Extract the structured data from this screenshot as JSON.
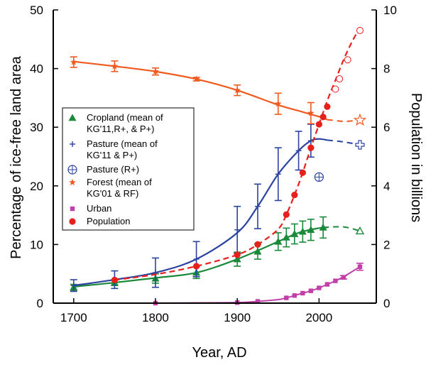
{
  "chart_data": {
    "type": "line",
    "xlabel": "Year, AD",
    "ylabel_left": "Percentage of ice-free land area",
    "ylabel_right": "Population in billions",
    "xlim": [
      1675,
      2070
    ],
    "ylim_left": [
      0,
      50
    ],
    "ylim_right": [
      0,
      10
    ],
    "x_ticks": [
      1700,
      1800,
      1900,
      2000
    ],
    "y_ticks_left": [
      0,
      10,
      20,
      30,
      40,
      50
    ],
    "y_ticks_right": [
      0,
      2,
      4,
      6,
      8,
      10
    ],
    "grid": false,
    "legend_placement": "left-middle",
    "colors": {
      "cropland": "#1a8a3a",
      "pasture": "#2b43a0",
      "forest": "#f05a1e",
      "urban": "#c040a8",
      "population": "#e8201c"
    },
    "legend": [
      {
        "key": "cropland",
        "marker": "triangle",
        "lines": [
          "Cropland (mean of",
          "KG'11,R+, & P+)"
        ]
      },
      {
        "key": "pasture",
        "marker": "plus",
        "lines": [
          "Pasture (mean of",
          "KG'11 & P+)"
        ]
      },
      {
        "key": "pasture_r",
        "marker": "circle-plus",
        "lines": [
          "Pasture (R+)"
        ]
      },
      {
        "key": "forest",
        "marker": "star",
        "lines": [
          "Forest (mean of",
          "KG'01 & RF)"
        ]
      },
      {
        "key": "urban",
        "marker": "square",
        "lines": [
          "Urban"
        ]
      },
      {
        "key": "population",
        "marker": "circle",
        "lines": [
          "Population"
        ]
      }
    ],
    "series": [
      {
        "key": "cropland",
        "axis": "left",
        "curve_x": [
          1700,
          1750,
          1800,
          1850,
          1900,
          1950,
          1975,
          2000,
          2010
        ],
        "curve_y": [
          2.8,
          3.5,
          4.3,
          5.2,
          7.5,
          10.5,
          12.0,
          12.8,
          12.9
        ],
        "points": [
          {
            "x": 1700,
            "y": 2.7,
            "err": 0.5
          },
          {
            "x": 1750,
            "y": 3.5,
            "err": 0.5
          },
          {
            "x": 1800,
            "y": 4.2,
            "err": 0.8
          },
          {
            "x": 1850,
            "y": 5.2,
            "err": 1.0
          },
          {
            "x": 1900,
            "y": 7.5,
            "err": 1.2
          },
          {
            "x": 1925,
            "y": 8.8,
            "err": 1.3
          },
          {
            "x": 1950,
            "y": 10.5,
            "err": 1.5
          },
          {
            "x": 1960,
            "y": 11.2,
            "err": 1.6
          },
          {
            "x": 1970,
            "y": 11.8,
            "err": 1.7
          },
          {
            "x": 1980,
            "y": 12.2,
            "err": 1.8
          },
          {
            "x": 1990,
            "y": 12.5,
            "err": 1.8
          },
          {
            "x": 2005,
            "y": 12.9,
            "err": 1.8
          }
        ],
        "projection_x": [
          2005,
          2030,
          2050
        ],
        "projection_y": [
          12.9,
          13.0,
          12.3
        ],
        "projection_marker": {
          "x": 2050,
          "y": 12.3
        }
      },
      {
        "key": "pasture",
        "axis": "left",
        "curve_x": [
          1700,
          1750,
          1800,
          1850,
          1900,
          1925,
          1950,
          1975,
          1990,
          2000,
          2010
        ],
        "curve_y": [
          3.0,
          4.0,
          5.2,
          7.5,
          12.0,
          16.5,
          22.0,
          26.0,
          27.7,
          28.0,
          27.8
        ],
        "points": [
          {
            "x": 1700,
            "y": 3.0,
            "err": 1.0
          },
          {
            "x": 1750,
            "y": 4.0,
            "err": 1.5
          },
          {
            "x": 1800,
            "y": 5.2,
            "err": 2.5
          },
          {
            "x": 1850,
            "y": 7.5,
            "err": 3.0
          },
          {
            "x": 1900,
            "y": 12.5,
            "err": 4.0
          },
          {
            "x": 1925,
            "y": 16.5,
            "err": 3.8
          },
          {
            "x": 1950,
            "y": 22.0,
            "err": 4.5
          },
          {
            "x": 1975,
            "y": 26.0,
            "err": 3.3
          },
          {
            "x": 1990,
            "y": 27.7,
            "err": 2.8
          }
        ],
        "projection_x": [
          2010,
          2030,
          2050
        ],
        "projection_y": [
          27.8,
          27.5,
          27.0
        ],
        "projection_marker": {
          "x": 2050,
          "y": 27.0
        }
      },
      {
        "key": "pasture_r",
        "axis": "left",
        "points": [
          {
            "x": 2000,
            "y": 21.5
          }
        ]
      },
      {
        "key": "forest",
        "axis": "left",
        "curve_x": [
          1700,
          1750,
          1800,
          1850,
          1900,
          1950,
          1975,
          1990,
          2000,
          2010
        ],
        "curve_y": [
          41.2,
          40.4,
          39.5,
          38.2,
          36.3,
          33.8,
          32.8,
          32.2,
          31.8,
          31.3
        ],
        "points": [
          {
            "x": 1700,
            "y": 41.1,
            "err": 0.9
          },
          {
            "x": 1750,
            "y": 40.4,
            "err": 0.9
          },
          {
            "x": 1800,
            "y": 39.5,
            "err": 0.6
          },
          {
            "x": 1850,
            "y": 38.2,
            "err": 0.3
          },
          {
            "x": 1900,
            "y": 36.3,
            "err": 0.9
          },
          {
            "x": 1950,
            "y": 34.0,
            "err": 1.8
          },
          {
            "x": 1990,
            "y": 32.4,
            "err": 1.8
          }
        ],
        "projection_x": [
          2010,
          2030,
          2050
        ],
        "projection_y": [
          31.3,
          31.0,
          31.2
        ],
        "projection_marker": {
          "x": 2050,
          "y": 31.2
        }
      },
      {
        "key": "urban",
        "axis": "left",
        "curve_x": [
          1800,
          1850,
          1900,
          1925,
          1950,
          1960,
          1970,
          1980,
          1990,
          2000,
          2010,
          2020,
          2030,
          2050
        ],
        "curve_y": [
          0.0,
          0.05,
          0.1,
          0.3,
          0.6,
          0.9,
          1.3,
          1.7,
          2.1,
          2.6,
          3.2,
          3.8,
          4.5,
          6.2
        ],
        "points": [
          {
            "x": 1800,
            "y": 0.0,
            "err": 0
          },
          {
            "x": 1900,
            "y": 0.1,
            "err": 0
          },
          {
            "x": 1925,
            "y": 0.3,
            "err": 0
          },
          {
            "x": 1960,
            "y": 0.9,
            "err": 0
          },
          {
            "x": 1970,
            "y": 1.3,
            "err": 0
          },
          {
            "x": 1980,
            "y": 1.7,
            "err": 0
          },
          {
            "x": 1990,
            "y": 2.1,
            "err": 0
          },
          {
            "x": 2000,
            "y": 2.6,
            "err": 0
          },
          {
            "x": 2010,
            "y": 3.2,
            "err": 0
          },
          {
            "x": 2020,
            "y": 3.8,
            "err": 0
          },
          {
            "x": 2030,
            "y": 4.4,
            "err": 0.3
          },
          {
            "x": 2050,
            "y": 6.2,
            "err": 0.6
          }
        ]
      },
      {
        "key": "population",
        "axis": "right",
        "curve_x": [
          1750,
          1800,
          1850,
          1900,
          1925,
          1950,
          1960,
          1970,
          1980,
          1990,
          2000,
          2010,
          2020,
          2030,
          2040,
          2050
        ],
        "curve_y": [
          0.79,
          0.98,
          1.26,
          1.65,
          2.0,
          2.52,
          3.02,
          3.69,
          4.45,
          5.3,
          6.1,
          6.9,
          7.6,
          8.3,
          8.9,
          9.4
        ],
        "points": [
          {
            "x": 1750,
            "y": 0.79
          },
          {
            "x": 1850,
            "y": 1.26
          },
          {
            "x": 1900,
            "y": 1.65
          },
          {
            "x": 1925,
            "y": 2.0
          },
          {
            "x": 1960,
            "y": 3.02
          },
          {
            "x": 1970,
            "y": 3.69
          },
          {
            "x": 1980,
            "y": 4.45
          },
          {
            "x": 1990,
            "y": 5.3
          },
          {
            "x": 2000,
            "y": 6.1
          },
          {
            "x": 2005,
            "y": 6.35
          },
          {
            "x": 2010,
            "y": 6.7
          }
        ],
        "projection_points": [
          {
            "x": 2020,
            "y": 7.3
          },
          {
            "x": 2025,
            "y": 7.65
          },
          {
            "x": 2035,
            "y": 8.3
          },
          {
            "x": 2050,
            "y": 9.3
          }
        ]
      }
    ]
  }
}
